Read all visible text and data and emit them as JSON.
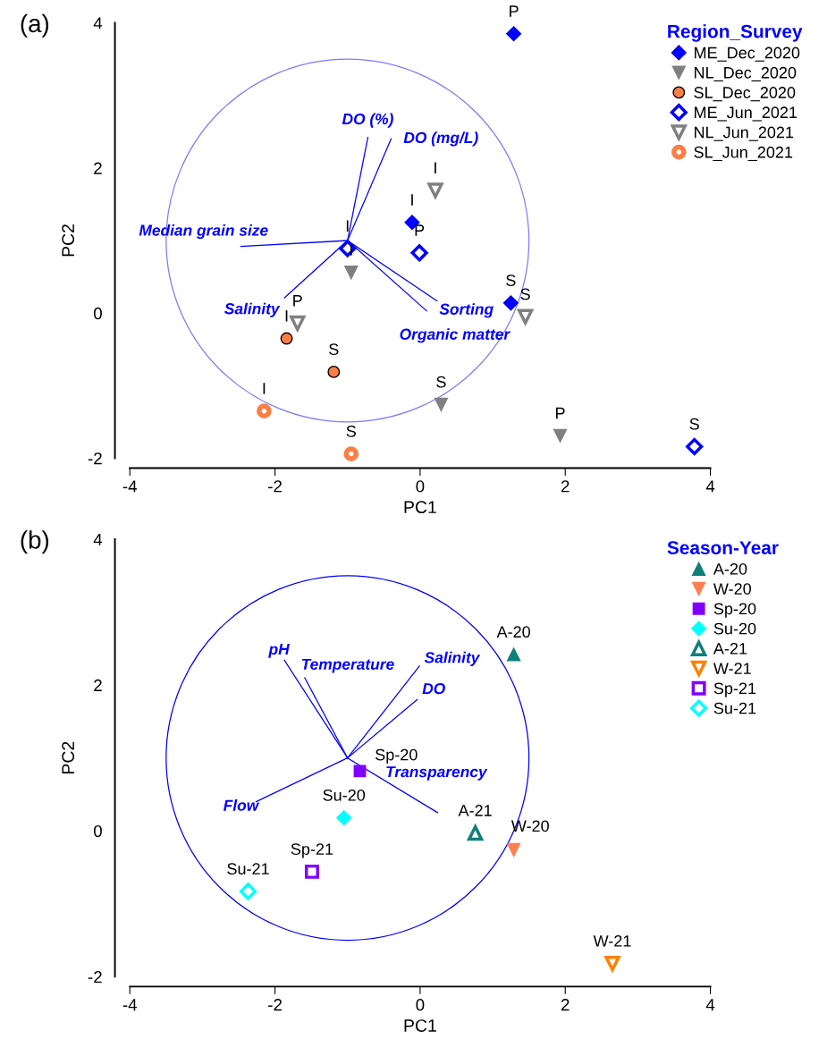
{
  "chart_data": [
    {
      "type": "scatter",
      "xlabel": "PC1",
      "ylabel": "PC2",
      "legend_title": "Region_Survey",
      "annotations": [
        "(a)"
      ],
      "xlim": [
        -4,
        4
      ],
      "ylim": [
        -2,
        4
      ],
      "xticks": [
        -4,
        -2,
        0,
        2,
        4
      ],
      "yticks": [
        -2,
        0,
        2,
        4
      ],
      "legend": "top right",
      "series": [
        {
          "name": "ME_Dec_2020",
          "marker": "diamond",
          "color": "#0000ff",
          "x": [
            1.29,
            -0.11,
            1.25
          ],
          "values": [
            3.85,
            1.25,
            0.14
          ],
          "value_labels": [
            "P",
            "I",
            "S"
          ]
        },
        {
          "name": "NL_Dec_2020",
          "marker": "triangle_down",
          "color": "#808080",
          "x": [
            1.93,
            -0.95,
            0.29
          ],
          "values": [
            -1.69,
            0.56,
            -1.26
          ],
          "value_labels": [
            "P",
            "I",
            "S"
          ]
        },
        {
          "name": "SL_Dec_2020",
          "marker": "circle_outlined",
          "color": "#f97f45",
          "x": [
            -1.84,
            -1.19
          ],
          "values": [
            -0.35,
            -0.81
          ],
          "value_labels": [
            "I",
            "S"
          ]
        },
        {
          "name": "ME_Jun_2021",
          "marker": "diamond_open",
          "color": "#0000ff",
          "x": [
            -0.01,
            -1.0,
            3.78
          ],
          "values": [
            0.83,
            0.89,
            -1.84
          ],
          "value_labels": [
            "P",
            "I",
            "S"
          ]
        },
        {
          "name": "NL_Jun_2021",
          "marker": "triangle_down_open",
          "color": "#808080",
          "x": [
            -1.69,
            0.21,
            1.45
          ],
          "values": [
            -0.14,
            1.69,
            -0.05
          ],
          "value_labels": [
            "P",
            "I",
            "S"
          ]
        },
        {
          "name": "SL_Jun_2021",
          "marker": "circle_ring",
          "color": "#f97f45",
          "x": [
            -2.15,
            -0.95
          ],
          "values": [
            -1.35,
            -1.94
          ],
          "value_labels": [
            "I",
            "S"
          ]
        },
        {
          "name": "DO (%)",
          "type": "line",
          "color": "#0000ff",
          "x": [
            -1.0,
            -0.72
          ],
          "values": [
            1.0,
            2.42
          ]
        },
        {
          "name": "DO (mg/L)",
          "type": "line",
          "color": "#0000ff",
          "x": [
            -1.0,
            -0.4
          ],
          "values": [
            1.0,
            2.4
          ]
        },
        {
          "name": "Median grain size",
          "type": "line",
          "color": "#0000ff",
          "x": [
            -1.0,
            -2.47
          ],
          "values": [
            1.0,
            0.92
          ]
        },
        {
          "name": "Salinity",
          "type": "line",
          "color": "#0000ff",
          "x": [
            -1.0,
            -1.87
          ],
          "values": [
            1.0,
            0.21
          ]
        },
        {
          "name": "Sorting",
          "type": "line",
          "color": "#0000ff",
          "x": [
            -1.0,
            0.23
          ],
          "values": [
            1.0,
            0.17
          ]
        },
        {
          "name": "Organic matter",
          "type": "line",
          "color": "#0000ff",
          "x": [
            -1.0,
            0.09
          ],
          "values": [
            1.0,
            0.03
          ]
        }
      ]
    },
    {
      "type": "scatter",
      "xlabel": "PC1",
      "ylabel": "PC2",
      "legend_title": "Season-Year",
      "annotations": [
        "(b)"
      ],
      "xlim": [
        -4,
        4
      ],
      "ylim": [
        -2,
        4
      ],
      "xticks": [
        -4,
        -2,
        0,
        2,
        4
      ],
      "yticks": [
        -2,
        0,
        2,
        4
      ],
      "legend": "top right",
      "series": [
        {
          "name": "A-20",
          "marker": "triangle",
          "color": "#0f7f7a",
          "x": [
            1.29
          ],
          "values": [
            2.42
          ],
          "value_labels": [
            "A-20"
          ]
        },
        {
          "name": "W-20",
          "marker": "triangle_down",
          "color": "#ff7f50",
          "x": [
            1.29
          ],
          "values": [
            -0.26
          ],
          "value_labels": [
            "W-20"
          ]
        },
        {
          "name": "Sp-20",
          "marker": "square",
          "color": "#8000ff",
          "x": [
            -0.83
          ],
          "values": [
            0.82
          ],
          "value_labels": [
            "Sp-20"
          ]
        },
        {
          "name": "Su-20",
          "marker": "diamond",
          "color": "#00ffff",
          "x": [
            -1.05
          ],
          "values": [
            0.18
          ],
          "value_labels": [
            "Su-20"
          ]
        },
        {
          "name": "A-21",
          "marker": "triangle_open",
          "color": "#0f7f7a",
          "x": [
            0.76
          ],
          "values": [
            -0.03
          ],
          "value_labels": [
            "A-21"
          ]
        },
        {
          "name": "W-21",
          "marker": "triangle_down_open",
          "color": "#ff8000",
          "x": [
            2.65
          ],
          "values": [
            -1.82
          ],
          "value_labels": [
            "W-21"
          ]
        },
        {
          "name": "Sp-21",
          "marker": "square_open",
          "color": "#8000ff",
          "x": [
            -1.49
          ],
          "values": [
            -0.56
          ],
          "value_labels": [
            "Sp-21"
          ]
        },
        {
          "name": "Su-21",
          "marker": "diamond_open",
          "color": "#00ffff",
          "x": [
            -2.37
          ],
          "values": [
            -0.83
          ],
          "value_labels": [
            "Su-21"
          ]
        },
        {
          "name": "pH",
          "type": "line",
          "color": "#0000ff",
          "x": [
            -1.0,
            -1.87
          ],
          "values": [
            1.0,
            2.34
          ]
        },
        {
          "name": "Temperature",
          "type": "line",
          "color": "#0000ff",
          "x": [
            -1.0,
            -1.59
          ],
          "values": [
            1.0,
            2.1
          ]
        },
        {
          "name": "Salinity",
          "type": "line",
          "color": "#0000ff",
          "x": [
            -1.0,
            -0.01
          ],
          "values": [
            1.0,
            2.26
          ]
        },
        {
          "name": "DO",
          "type": "line",
          "color": "#0000ff",
          "x": [
            -1.0,
            -0.04
          ],
          "values": [
            1.0,
            1.8
          ]
        },
        {
          "name": "Transparency",
          "type": "line",
          "color": "#0000ff",
          "x": [
            -1.0,
            0.24
          ],
          "values": [
            1.0,
            0.25
          ]
        },
        {
          "name": "Flow",
          "type": "line",
          "color": "#0000ff",
          "x": [
            -1.0,
            -2.26
          ],
          "values": [
            1.0,
            0.4
          ]
        }
      ]
    }
  ]
}
